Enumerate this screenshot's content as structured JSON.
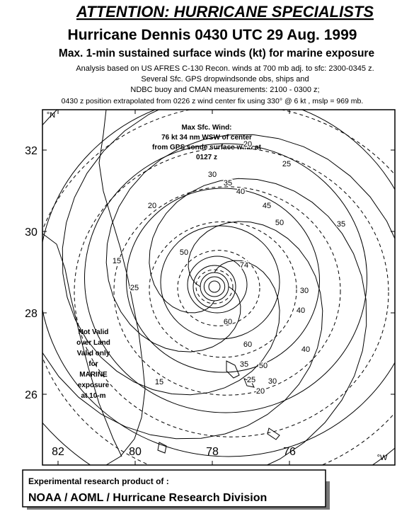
{
  "header": {
    "title": "ATTENTION: HURRICANE SPECIALISTS",
    "subtitle": "Hurricane Dennis 0430 UTC 29 Aug. 1999",
    "heading": "Max. 1-min sustained surface winds (kt) for marine exposure",
    "notes": [
      "Analysis based on US AFRES C-130 Recon. winds at 700 mb adj. to sfc: 2300-0345 z.",
      "Several Sfc. GPS dropwindsonde obs, ships and",
      "NDBC buoy and CMAN measurements: 2100 - 0300 z;",
      "0430 z  position extrapolated from 0226 z wind center fix  using 330° @ 6 kt , mslp = 969 mb."
    ]
  },
  "map": {
    "lat_label": "°N",
    "lon_label": "°W",
    "lat_ticks": [
      32,
      30,
      28,
      26
    ],
    "lon_ticks": [
      82,
      80,
      78,
      76
    ],
    "max_wind": [
      "Max Sfc. Wind:",
      "76 kt  34 nm WSW of center",
      "from GPS sonde surface wind at",
      "0127 z"
    ],
    "validity": [
      "Not Valid",
      "over Land",
      "Valid only",
      "for",
      "MARINE",
      "exposure",
      "at 10-m"
    ],
    "contour_labels": [
      20,
      25,
      30,
      35,
      40,
      45,
      50,
      20,
      35,
      15,
      25,
      60,
      60,
      50,
      40,
      30,
      35,
      25,
      20,
      15,
      30,
      40,
      50,
      74
    ]
  },
  "footer": {
    "line1": "Experimental research product of :",
    "line2": "NOAA / AOML / Hurricane Research Division"
  }
}
